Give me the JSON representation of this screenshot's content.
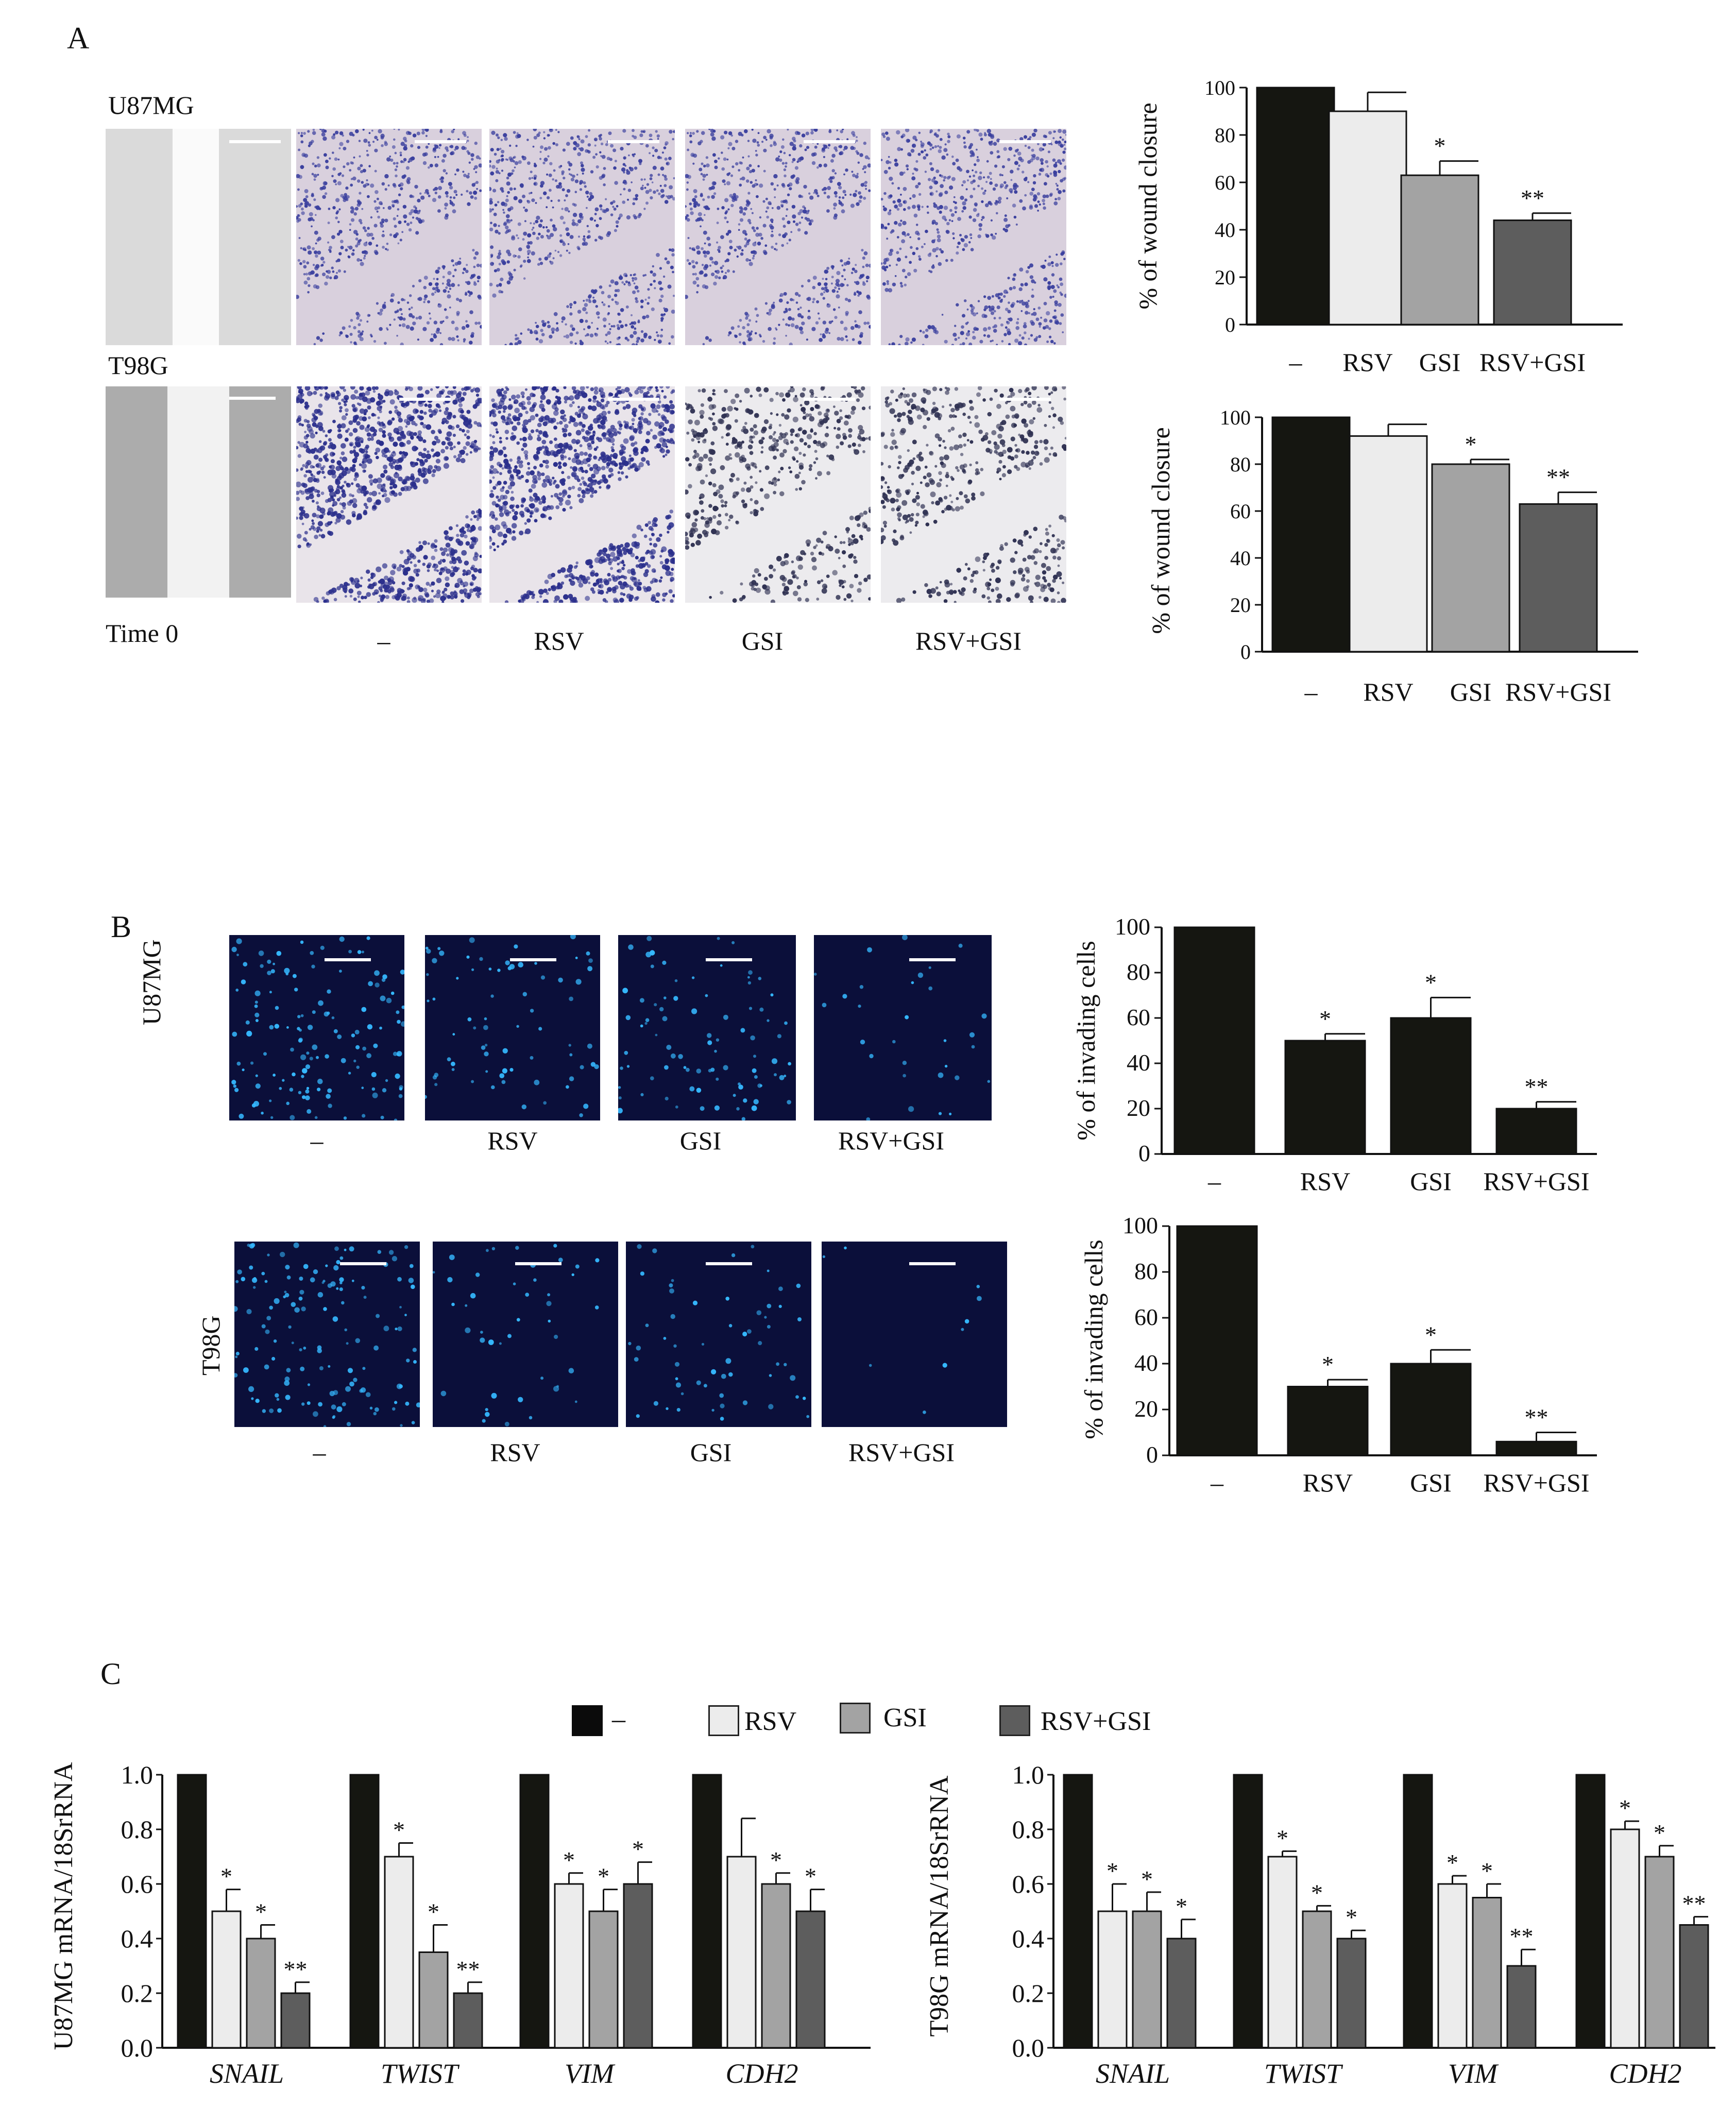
{
  "panels": {
    "A": {
      "letter": "A",
      "rows": [
        {
          "cell_line": "U87MG",
          "time_label": "",
          "style": "purple"
        },
        {
          "cell_line": "T98G",
          "time_label": "Time 0",
          "style": "dense"
        }
      ],
      "conditions": [
        "–",
        "RSV",
        "GSI",
        "RSV+GSI"
      ]
    },
    "B": {
      "letter": "B",
      "rows": [
        {
          "cell_line": "U87MG",
          "conditions": [
            "–",
            "RSV",
            "GSI",
            "RSV+GSI"
          ],
          "densities": [
            1.0,
            0.5,
            0.6,
            0.2
          ]
        },
        {
          "cell_line": "T98G",
          "conditions": [
            "–",
            "RSV",
            "GSI",
            "RSV+GSI"
          ],
          "densities": [
            1.0,
            0.3,
            0.4,
            0.05
          ]
        }
      ]
    },
    "C": {
      "letter": "C",
      "legend": [
        "–",
        "RSV",
        "GSI",
        "RSV+GSI"
      ]
    }
  },
  "colors": {
    "control": "#151611",
    "rsv": "#ececec",
    "gsi": "#a3a3a3",
    "rsv_gsi": "#5d5d5d",
    "micro_bg_purple": "#d9d0dd",
    "micro_cells_purple": "#3a3f9e",
    "micro_bg_fluor": "#0b0f3a",
    "micro_cells_fluor": "#35b8ff"
  },
  "chart_data": [
    {
      "id": "A-U87MG",
      "type": "bar",
      "categories": [
        "–",
        "RSV",
        "GSI",
        "RSV+GSI"
      ],
      "values": [
        100,
        90,
        63,
        44
      ],
      "errors": [
        0,
        8,
        6,
        3
      ],
      "significance": [
        "",
        "",
        "*",
        "**"
      ],
      "ylabel": "% of wound closure",
      "ylim": [
        0,
        100
      ],
      "yticks": [
        "0",
        "20",
        "40",
        "60",
        "80",
        "100"
      ]
    },
    {
      "id": "A-T98G",
      "type": "bar",
      "categories": [
        "–",
        "RSV",
        "GSI",
        "RSV+GSI"
      ],
      "values": [
        100,
        92,
        80,
        63
      ],
      "errors": [
        0,
        5,
        2,
        5
      ],
      "significance": [
        "",
        "",
        "*",
        "**"
      ],
      "ylabel": "% of wound closure",
      "ylim": [
        0,
        100
      ],
      "yticks": [
        "0",
        "20",
        "40",
        "60",
        "80",
        "100"
      ]
    },
    {
      "id": "B-U87MG",
      "type": "bar",
      "categories": [
        "–",
        "RSV",
        "GSI",
        "RSV+GSI"
      ],
      "values": [
        100,
        50,
        60,
        20
      ],
      "errors": [
        0,
        3,
        9,
        3
      ],
      "significance": [
        "",
        "*",
        "*",
        "**"
      ],
      "ylabel": "% of invading cells",
      "ylim": [
        0,
        100
      ],
      "yticks": [
        "0",
        "20",
        "40",
        "60",
        "80",
        "100"
      ]
    },
    {
      "id": "B-T98G",
      "type": "bar",
      "categories": [
        "–",
        "RSV",
        "GSI",
        "RSV+GSI"
      ],
      "values": [
        100,
        30,
        40,
        6
      ],
      "errors": [
        0,
        3,
        6,
        4
      ],
      "significance": [
        "",
        "*",
        "*",
        "**"
      ],
      "ylabel": "% of invading cells",
      "ylim": [
        0,
        100
      ],
      "yticks": [
        "0",
        "20",
        "40",
        "60",
        "80",
        "100"
      ]
    },
    {
      "id": "C-U87MG",
      "type": "bar",
      "categories": [
        "SNAIL",
        "TWIST",
        "VIM",
        "CDH2"
      ],
      "series": [
        {
          "name": "–",
          "values": [
            1.0,
            1.0,
            1.0,
            1.0
          ],
          "errors": [
            0,
            0,
            0,
            0
          ],
          "significance": [
            "",
            "",
            "",
            ""
          ]
        },
        {
          "name": "RSV",
          "values": [
            0.5,
            0.7,
            0.6,
            0.7
          ],
          "errors": [
            0.08,
            0.05,
            0.04,
            0.14
          ],
          "significance": [
            "*",
            "*",
            "*",
            ""
          ]
        },
        {
          "name": "GSI",
          "values": [
            0.4,
            0.35,
            0.5,
            0.6
          ],
          "errors": [
            0.05,
            0.1,
            0.08,
            0.04
          ],
          "significance": [
            "*",
            "*",
            "*",
            "*"
          ]
        },
        {
          "name": "RSV+GSI",
          "values": [
            0.2,
            0.2,
            0.6,
            0.5
          ],
          "errors": [
            0.04,
            0.04,
            0.08,
            0.08
          ],
          "significance": [
            "**",
            "**",
            "*",
            "*"
          ]
        }
      ],
      "ylabel": "U87MG mRNA/18SrRNA",
      "ylim": [
        0,
        1.0
      ],
      "yticks": [
        "0.0",
        "0.2",
        "0.4",
        "0.6",
        "0.8",
        "1.0"
      ]
    },
    {
      "id": "C-T98G",
      "type": "bar",
      "categories": [
        "SNAIL",
        "TWIST",
        "VIM",
        "CDH2"
      ],
      "series": [
        {
          "name": "–",
          "values": [
            1.0,
            1.0,
            1.0,
            1.0
          ],
          "errors": [
            0,
            0,
            0,
            0
          ],
          "significance": [
            "",
            "",
            "",
            ""
          ]
        },
        {
          "name": "RSV",
          "values": [
            0.5,
            0.7,
            0.6,
            0.8
          ],
          "errors": [
            0.1,
            0.02,
            0.03,
            0.03
          ],
          "significance": [
            "*",
            "*",
            "*",
            "*"
          ]
        },
        {
          "name": "GSI",
          "values": [
            0.5,
            0.5,
            0.55,
            0.7
          ],
          "errors": [
            0.07,
            0.02,
            0.05,
            0.04
          ],
          "significance": [
            "*",
            "*",
            "*",
            "*"
          ]
        },
        {
          "name": "RSV+GSI",
          "values": [
            0.4,
            0.4,
            0.3,
            0.45
          ],
          "errors": [
            0.07,
            0.03,
            0.06,
            0.03
          ],
          "significance": [
            "*",
            "*",
            "**",
            "**"
          ]
        }
      ],
      "ylabel": "T98G mRNA/18SrRNA",
      "ylim": [
        0,
        1.0
      ],
      "yticks": [
        "0.0",
        "0.2",
        "0.4",
        "0.6",
        "0.8",
        "1.0"
      ]
    }
  ]
}
